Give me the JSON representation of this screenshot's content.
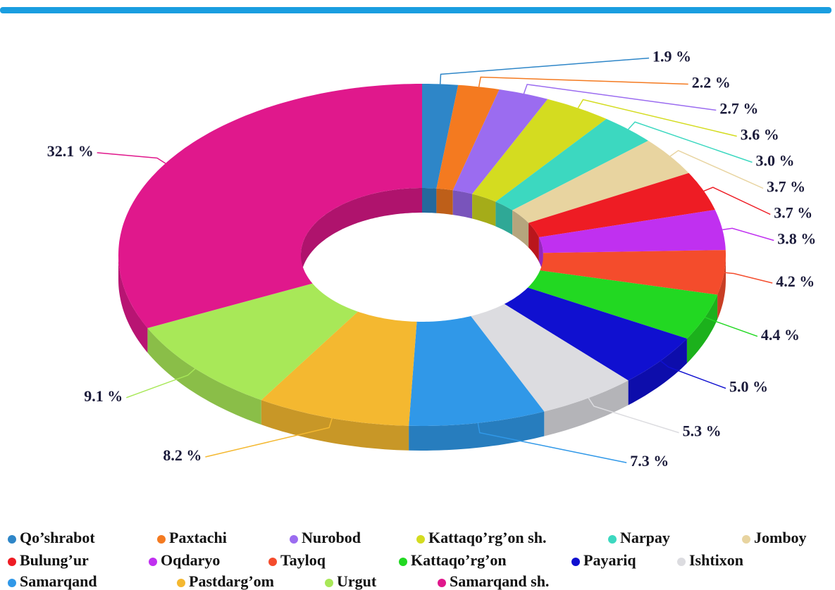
{
  "chart_data": {
    "type": "donut",
    "categories": [
      "Qo’shrabot",
      "Paxtachi",
      "Nurobod",
      "Kattaqo’rg’on sh.",
      "Narpay",
      "Jomboy",
      "Bulung’ur",
      "Oqdaryo",
      "Tayloq",
      "Kattaqo’rg’on",
      "Payariq",
      "Ishtixon",
      "Samarqand",
      "Pastdarg’om",
      "Urgut",
      "Samarqand sh."
    ],
    "values": [
      1.9,
      2.2,
      2.7,
      3.6,
      3.0,
      3.7,
      3.7,
      3.8,
      4.2,
      4.4,
      5.0,
      5.3,
      7.3,
      8.2,
      9.1,
      32.1
    ],
    "value_labels": [
      "1.9 %",
      "2.2 %",
      "2.7 %",
      "3.6 %",
      "3.0 %",
      "3.7 %",
      "3.7 %",
      "3.8 %",
      "4.2 %",
      "4.4 %",
      "5.0 %",
      "5.3 %",
      "7.3 %",
      "8.2 %",
      "9.1 %",
      "32.1 %"
    ],
    "colors": [
      "#2e86c8",
      "#f47a20",
      "#9b6cf0",
      "#d4dc20",
      "#3cd8c0",
      "#e8d4a0",
      "#ee1c24",
      "#c030f0",
      "#f44c2c",
      "#22d822",
      "#1010d0",
      "#dcdce0",
      "#3098e8",
      "#f4b830",
      "#a8e858",
      "#e0188c"
    ],
    "legend": "bottom"
  }
}
